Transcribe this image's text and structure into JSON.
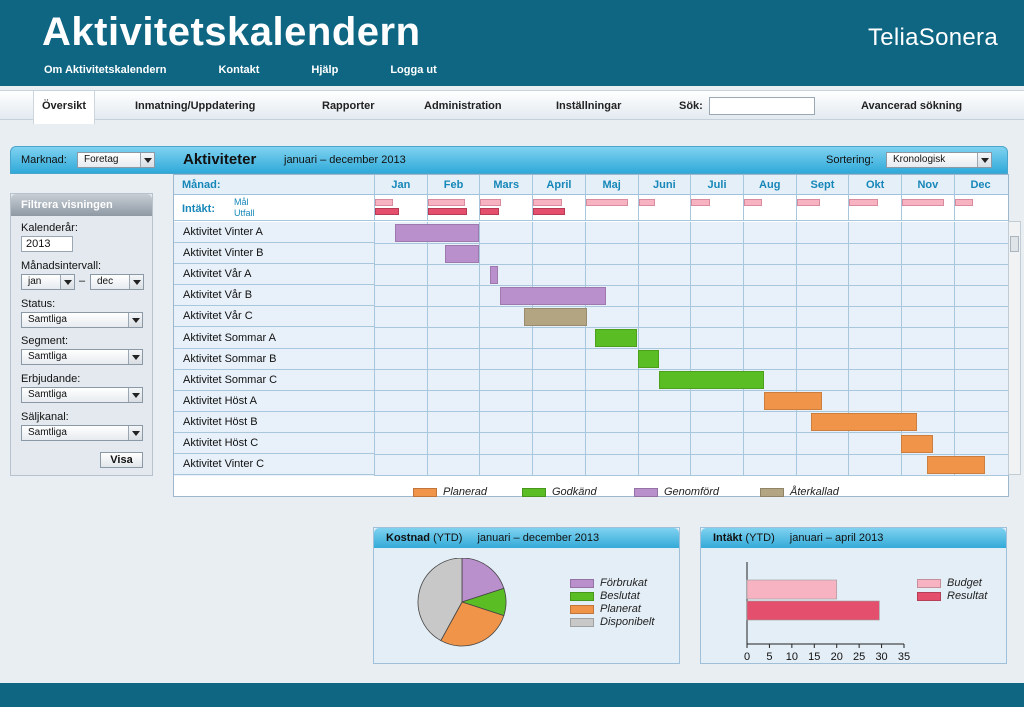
{
  "header": {
    "title": "Aktivitetskalendern",
    "brand": "TeliaSonera",
    "links": [
      "Om Aktivitetskalendern",
      "Kontakt",
      "Hjälp",
      "Logga ut"
    ]
  },
  "nav": {
    "tabs": [
      "Översikt",
      "Inmatning/Uppdatering",
      "Rapporter",
      "Administration",
      "Inställningar"
    ],
    "search_label": "Sök:",
    "search_value": "",
    "advanced": "Avancerad sökning"
  },
  "panel": {
    "market_label": "Marknad:",
    "market_value": "Foretag",
    "title": "Aktiviteter",
    "range": "januari – december 2013",
    "sort_label": "Sortering:",
    "sort_value": "Kronologisk"
  },
  "filter": {
    "title": "Filtrera visningen",
    "year_label": "Kalenderår:",
    "year_value": "2013",
    "interval_label": "Månadsintervall:",
    "interval_from": "jan",
    "interval_sep": "–",
    "interval_to": "dec",
    "status_label": "Status:",
    "status_value": "Samtliga",
    "segment_label": "Segment:",
    "segment_value": "Samtliga",
    "offer_label": "Erbjudande:",
    "offer_value": "Samtliga",
    "channel_label": "Säljkanal:",
    "channel_value": "Samtliga",
    "show_button": "Visa"
  },
  "gantt": {
    "month_label": "Månad:",
    "income_label": "Intäkt:",
    "goal_label": "Mål",
    "outcome_label": "Utfall",
    "months": [
      "Jan",
      "Feb",
      "Mars",
      "April",
      "Maj",
      "Juni",
      "Juli",
      "Aug",
      "Sept",
      "Okt",
      "Nov",
      "Dec"
    ],
    "income_goal": [
      0.35,
      0.7,
      0.4,
      0.55,
      0.8,
      0.32,
      0.35,
      0.35,
      0.45,
      0.55,
      0.8,
      0.35
    ],
    "income_outcome": [
      0.45,
      0.75,
      0.35,
      0.6,
      null,
      null,
      null,
      null,
      null,
      null,
      null,
      null
    ],
    "activities": [
      {
        "name": "Aktivitet Vinter A",
        "start": 0.4,
        "end": 2.0,
        "status": "Genomförd"
      },
      {
        "name": "Aktivitet Vinter B",
        "start": 1.35,
        "end": 2.0,
        "status": "Genomförd"
      },
      {
        "name": "Aktivitet Vår A",
        "start": 2.2,
        "end": 2.35,
        "status": "Genomförd"
      },
      {
        "name": "Aktivitet Vår B",
        "start": 2.4,
        "end": 4.4,
        "status": "Genomförd"
      },
      {
        "name": "Aktivitet Vår C",
        "start": 2.85,
        "end": 4.05,
        "status": "Återkallad"
      },
      {
        "name": "Aktivitet Sommar A",
        "start": 4.2,
        "end": 5.0,
        "status": "Godkänd"
      },
      {
        "name": "Aktivitet Sommar B",
        "start": 5.0,
        "end": 5.4,
        "status": "Godkänd"
      },
      {
        "name": "Aktivitet Sommar C",
        "start": 5.4,
        "end": 7.4,
        "status": "Godkänd"
      },
      {
        "name": "Aktivitet Höst A",
        "start": 7.4,
        "end": 8.5,
        "status": "Planerad"
      },
      {
        "name": "Aktivitet Höst B",
        "start": 8.3,
        "end": 10.3,
        "status": "Planerad"
      },
      {
        "name": "Aktivitet Höst C",
        "start": 10.0,
        "end": 10.6,
        "status": "Planerad"
      },
      {
        "name": "Aktivitet Vinter C",
        "start": 10.5,
        "end": 11.6,
        "status": "Planerad"
      }
    ],
    "legend": [
      {
        "label": "Planerad",
        "color": "#f0944a"
      },
      {
        "label": "Godkänd",
        "color": "#5bbd24"
      },
      {
        "label": "Genomförd",
        "color": "#b98fcc"
      },
      {
        "label": "Återkallad",
        "color": "#b4a582"
      }
    ]
  },
  "cost": {
    "title": "Kostnad",
    "ytd": "(YTD)",
    "range": "januari – december 2013",
    "chart_data": {
      "type": "pie",
      "slices": [
        {
          "label": "Förbrukat",
          "value": 20,
          "color": "#b98fcc"
        },
        {
          "label": "Beslutat",
          "value": 10,
          "color": "#5bbd24"
        },
        {
          "label": "Planerat",
          "value": 28,
          "color": "#f0944a"
        },
        {
          "label": "Disponibelt",
          "value": 42,
          "color": "#c8c8c8"
        }
      ]
    }
  },
  "income": {
    "title": "Intäkt",
    "ytd": "(YTD)",
    "range": "januari – april 2013",
    "chart_data": {
      "type": "bar",
      "orientation": "horizontal",
      "series": [
        {
          "name": "Budget",
          "value": 20,
          "color": "#f7b3c2"
        },
        {
          "name": "Resultat",
          "value": 29.5,
          "color": "#e34f6c"
        }
      ],
      "xticks": [
        "0",
        "5",
        "10",
        "15",
        "20",
        "25",
        "30",
        "35"
      ],
      "xlim": [
        0,
        35
      ]
    }
  }
}
